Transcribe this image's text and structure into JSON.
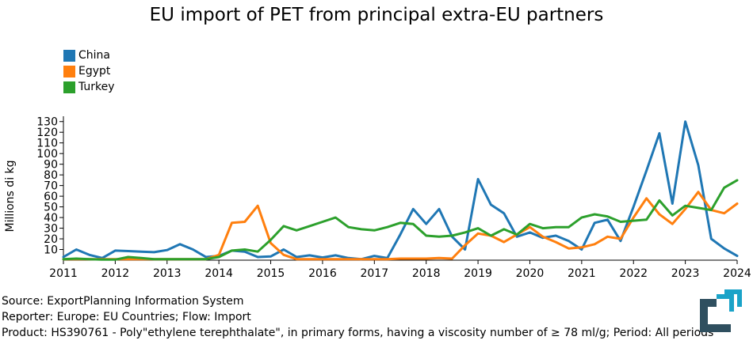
{
  "chart_data": {
    "type": "line",
    "title": "EU import of PET from principal extra-EU partners",
    "xlabel": "",
    "ylabel": "Millions di kg",
    "xlim": [
      2011,
      2024
    ],
    "ylim": [
      0,
      135
    ],
    "x_ticks": [
      "2011",
      "2012",
      "2013",
      "2014",
      "2015",
      "2016",
      "2017",
      "2018",
      "2019",
      "2020",
      "2021",
      "2022",
      "2023",
      "2024"
    ],
    "y_ticks": [
      "10",
      "20",
      "30",
      "40",
      "50",
      "60",
      "70",
      "80",
      "90",
      "100",
      "110",
      "120",
      "130"
    ],
    "legend_position": "top-left",
    "x": [
      2011,
      2011.25,
      2011.5,
      2011.75,
      2012,
      2012.25,
      2012.5,
      2012.75,
      2013,
      2013.25,
      2013.5,
      2013.75,
      2014,
      2014.25,
      2014.5,
      2014.75,
      2015,
      2015.25,
      2015.5,
      2015.75,
      2016,
      2016.25,
      2016.5,
      2016.75,
      2017,
      2017.25,
      2017.5,
      2017.75,
      2018,
      2018.25,
      2018.5,
      2018.75,
      2019,
      2019.25,
      2019.5,
      2019.75,
      2020,
      2020.25,
      2020.5,
      2020.75,
      2021,
      2021.25,
      2021.5,
      2021.75,
      2022,
      2022.25,
      2022.5,
      2022.75,
      2023,
      2023.25,
      2023.5,
      2023.75,
      2024
    ],
    "series": [
      {
        "name": "China",
        "color": "#1f77b4",
        "values": [
          3,
          10,
          5,
          2,
          9,
          8.5,
          8,
          7.5,
          9.5,
          15,
          10,
          3,
          4,
          9,
          8,
          3,
          3.5,
          10,
          3,
          4.5,
          2.5,
          4.5,
          2,
          1,
          4,
          2,
          24,
          48,
          34,
          48,
          22,
          10,
          76,
          52,
          44,
          22,
          26,
          21,
          23,
          18,
          10,
          35,
          38,
          18,
          50,
          84,
          119,
          53,
          130,
          89,
          20,
          11,
          4
        ]
      },
      {
        "name": "Egypt",
        "color": "#ff7f0e",
        "values": [
          1,
          1,
          1,
          1,
          1,
          1,
          1,
          1,
          1,
          1,
          1,
          1,
          5,
          35,
          36,
          51,
          16,
          5,
          1,
          1,
          1,
          1,
          1,
          1,
          1,
          1,
          1.5,
          1.5,
          1.5,
          2,
          1.5,
          14,
          25,
          23,
          17,
          24,
          31,
          22,
          17,
          11,
          12,
          15,
          22,
          20,
          40,
          58,
          43,
          34,
          48,
          64,
          47,
          44,
          53
        ]
      },
      {
        "name": "Turkey",
        "color": "#2ca02c",
        "values": [
          1,
          1.5,
          1,
          0.5,
          0.5,
          3,
          2,
          1,
          1,
          1,
          1,
          1,
          3,
          9,
          10,
          8,
          19,
          32,
          28,
          32,
          36,
          40,
          31,
          29,
          28,
          31,
          35,
          34,
          23,
          22,
          23,
          26,
          30,
          23,
          29,
          24,
          34,
          30,
          31,
          31,
          40,
          43,
          41,
          36,
          37,
          38,
          56,
          42,
          51,
          49,
          47,
          68,
          75
        ]
      }
    ]
  },
  "footer": {
    "source": "Source: ExportPlanning Information System",
    "reporter": "Reporter: Europe: EU Countries; Flow: Import",
    "product": "Product: HS390761 - Poly\"ethylene terephthalate\", in primary forms, having a viscosity number of ≥ 78 ml/g; Period: All periods"
  },
  "logo": {
    "color_dark": "#2f4f5f",
    "color_accent": "#1aa3c8"
  }
}
